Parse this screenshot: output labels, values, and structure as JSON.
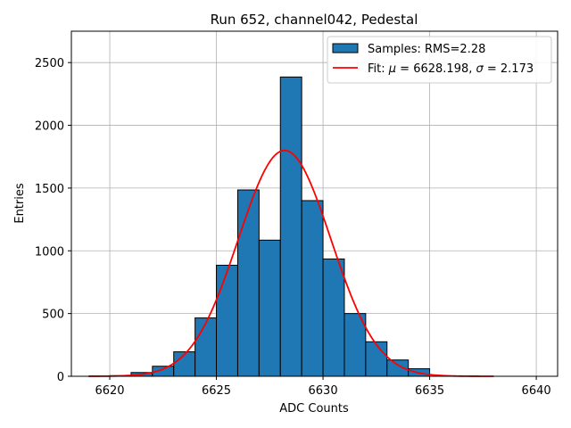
{
  "chart_data": {
    "type": "bar",
    "title": "Run 652, channel042, Pedestal",
    "xlabel": "ADC Counts",
    "ylabel": "Entries",
    "xlim": [
      6618.2,
      6641.0
    ],
    "ylim": [
      0,
      2750
    ],
    "xticks": [
      6620,
      6625,
      6630,
      6635,
      6640
    ],
    "yticks": [
      0,
      500,
      1000,
      1500,
      2000,
      2500
    ],
    "grid": true,
    "bar_color": "#1f77b4",
    "fit_color": "#ff0000",
    "histogram": {
      "name": "Samples: RMS=2.28",
      "bin_edges": [
        6620,
        6621,
        6622,
        6623,
        6624,
        6625,
        6626,
        6627,
        6628,
        6629,
        6630,
        6631,
        6632,
        6633,
        6634,
        6635
      ],
      "counts": [
        5,
        30,
        80,
        195,
        465,
        885,
        1485,
        1085,
        2385,
        1400,
        935,
        500,
        275,
        130,
        60
      ]
    },
    "fit": {
      "name": "Fit: μ = 6628.198, σ = 2.173",
      "label_parts": [
        "Fit: ",
        "μ",
        " = 6628.198, ",
        "σ",
        " = 2.173"
      ],
      "mu": 6628.198,
      "sigma": 2.173,
      "amplitude": 1800,
      "x_range": [
        6619,
        6638
      ]
    },
    "legend": {
      "position": "top-right"
    }
  }
}
